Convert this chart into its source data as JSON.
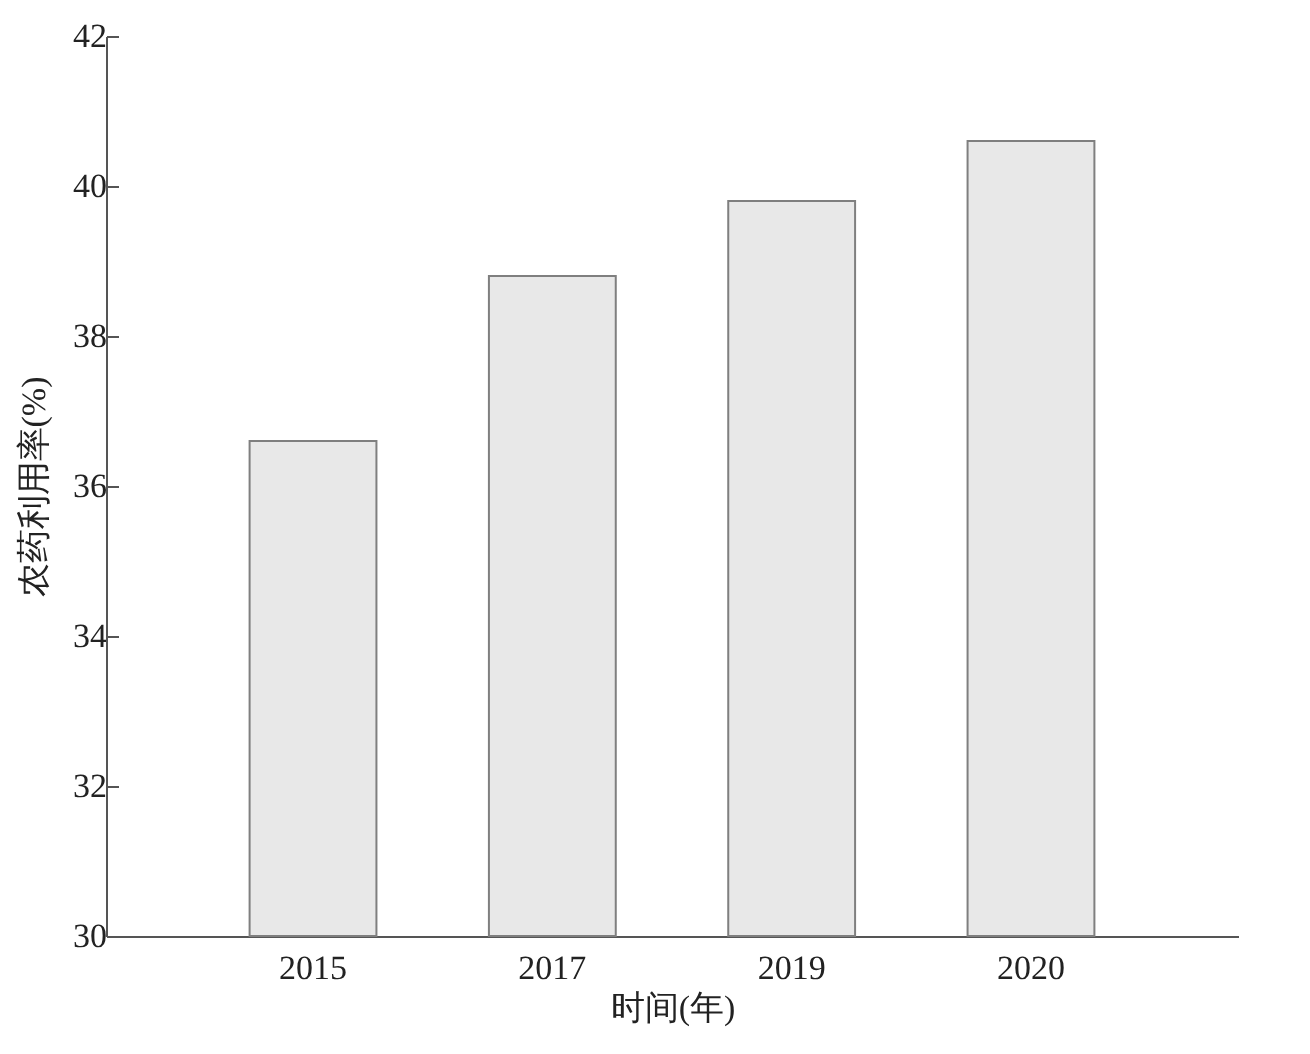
{
  "chart_data": {
    "type": "bar",
    "xlabel": "时间(年)",
    "ylabel": "农药利用率(%)",
    "categories": [
      "2015",
      "2017",
      "2019",
      "2020"
    ],
    "values": [
      36.6,
      38.8,
      39.8,
      40.6
    ],
    "color": "#e8e8e8",
    "ylim": [
      30,
      42
    ],
    "yticks": [
      30,
      32,
      34,
      36,
      38,
      40,
      42
    ],
    "grid": false
  }
}
